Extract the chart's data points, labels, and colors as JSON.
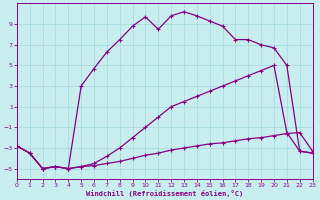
{
  "xlabel": "Windchill (Refroidissement éolien,°C)",
  "xlim": [
    0,
    23
  ],
  "ylim": [
    -6,
    11
  ],
  "yticks": [
    -5,
    -3,
    -1,
    1,
    3,
    5,
    7,
    9
  ],
  "xticks": [
    0,
    1,
    2,
    3,
    4,
    5,
    6,
    7,
    8,
    9,
    10,
    11,
    12,
    13,
    14,
    15,
    16,
    17,
    18,
    19,
    20,
    21,
    22,
    23
  ],
  "bg_color": "#c8eef0",
  "grid_color": "#a8dce0",
  "line_color": "#880088",
  "line1_x": [
    0,
    1,
    2,
    3,
    4,
    5,
    6,
    7,
    8,
    9,
    10,
    11,
    12,
    13,
    14,
    15,
    16,
    17,
    18,
    19,
    20,
    21,
    22,
    23
  ],
  "line1_y": [
    -2.8,
    -3.5,
    -5.0,
    -4.8,
    -5.0,
    -4.8,
    -4.7,
    -4.5,
    -4.3,
    -4.0,
    -3.7,
    -3.5,
    -3.2,
    -3.0,
    -2.8,
    -2.6,
    -2.5,
    -2.3,
    -2.1,
    -2.0,
    -1.8,
    -1.6,
    -1.5,
    -3.3
  ],
  "line2_x": [
    0,
    1,
    2,
    3,
    4,
    5,
    6,
    7,
    8,
    9,
    10,
    11,
    12,
    13,
    14,
    15,
    16,
    17,
    18,
    19,
    20,
    21,
    22,
    23
  ],
  "line2_y": [
    -2.8,
    -3.5,
    -5.0,
    -4.8,
    -5.0,
    -4.8,
    -4.5,
    -3.8,
    -3.0,
    -2.0,
    -1.0,
    0.0,
    1.0,
    1.5,
    2.0,
    2.5,
    3.0,
    3.5,
    4.0,
    4.5,
    5.0,
    -1.5,
    -3.3,
    -3.5
  ],
  "line3_x": [
    0,
    1,
    2,
    3,
    4,
    5,
    6,
    7,
    8,
    9,
    10,
    11,
    12,
    13,
    14,
    15,
    16,
    17,
    18,
    19,
    20,
    21,
    22,
    23
  ],
  "line3_y": [
    -2.8,
    -3.5,
    -5.0,
    -4.8,
    -5.0,
    3.0,
    4.7,
    6.3,
    7.5,
    8.8,
    9.7,
    8.5,
    9.8,
    10.2,
    9.8,
    9.3,
    8.8,
    7.5,
    7.5,
    7.0,
    6.7,
    5.0,
    -3.3,
    -3.5
  ],
  "marker": "+"
}
